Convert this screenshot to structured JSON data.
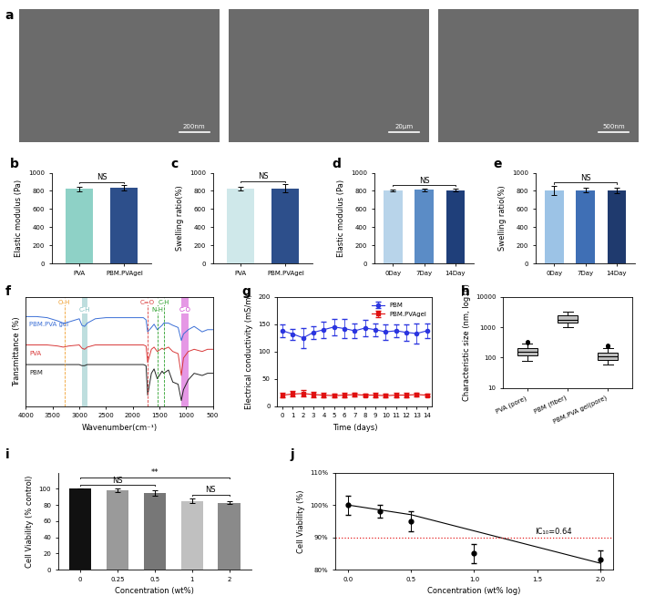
{
  "images": {
    "panel": "a",
    "scale_bars": [
      "200nm",
      "20μm",
      "500nm"
    ]
  },
  "chart_data": [
    {
      "panel": "b",
      "type": "bar",
      "categories": [
        "PVA",
        "PBM.PVAgel"
      ],
      "values": [
        820,
        830
      ],
      "errors": [
        25,
        30
      ],
      "colors": [
        "#8ed1c6",
        "#2d4f8b"
      ],
      "ylabel": "Elastic modulus (Pa)",
      "ylim": [
        0,
        1000
      ],
      "yticks": [
        0,
        200,
        400,
        600,
        800,
        1000
      ],
      "annotations": [
        {
          "text": "NS",
          "between": [
            "PVA",
            "PBM.PVAgel"
          ]
        }
      ]
    },
    {
      "panel": "c",
      "type": "bar",
      "categories": [
        "PVA",
        "PBM.PVAgel"
      ],
      "values": [
        820,
        825
      ],
      "errors": [
        20,
        45
      ],
      "colors": [
        "#cfe8ea",
        "#2d4f8b"
      ],
      "ylabel": "Swelling ratio(%)",
      "ylim": [
        0,
        1000
      ],
      "yticks": [
        0,
        200,
        400,
        600,
        800,
        1000
      ],
      "annotations": [
        {
          "text": "NS",
          "between": [
            "PVA",
            "PBM.PVAgel"
          ]
        }
      ]
    },
    {
      "panel": "d",
      "type": "bar",
      "categories": [
        "0Day",
        "7Day",
        "14Day"
      ],
      "values": [
        805,
        810,
        805
      ],
      "errors": [
        10,
        15,
        15
      ],
      "colors": [
        "#b8d4ea",
        "#5b8cc6",
        "#1f3f7a"
      ],
      "ylabel": "Elastic modulus (Pa)",
      "ylim": [
        0,
        1000
      ],
      "yticks": [
        0,
        200,
        400,
        600,
        800,
        1000
      ],
      "annotations": [
        {
          "text": "NS",
          "between": [
            "0Day",
            "14Day"
          ]
        }
      ]
    },
    {
      "panel": "e",
      "type": "bar",
      "categories": [
        "0Day",
        "7Day",
        "14Day"
      ],
      "values": [
        800,
        805,
        805
      ],
      "errors": [
        50,
        25,
        30
      ],
      "colors": [
        "#9cc3e6",
        "#3f6fb5",
        "#1f3a6e"
      ],
      "ylabel": "Swelling ratio(%)",
      "ylim": [
        0,
        1000
      ],
      "yticks": [
        0,
        200,
        400,
        600,
        800,
        1000
      ],
      "annotations": [
        {
          "text": "NS",
          "between": [
            "0Day",
            "14Day"
          ]
        }
      ]
    },
    {
      "panel": "f",
      "type": "line",
      "xlabel": "Wavenumber(cm⁻¹)",
      "ylabel": "Transmittance (%)",
      "x": [
        4000,
        3800,
        3600,
        3400,
        3300,
        3200,
        3000,
        2950,
        2900,
        2850,
        2700,
        2500,
        2200,
        2000,
        1800,
        1750,
        1720,
        1650,
        1600,
        1540,
        1450,
        1420,
        1330,
        1250,
        1150,
        1090,
        1050,
        960,
        850,
        700,
        600,
        500
      ],
      "series": [
        {
          "name": "PBM.PVA gel",
          "color": "#3b6fd6",
          "values": [
            82,
            82,
            81,
            78,
            76,
            77,
            80,
            74,
            73,
            76,
            80,
            81,
            81,
            81,
            81,
            79,
            68,
            72,
            75,
            70,
            74,
            76,
            76,
            74,
            72,
            60,
            66,
            70,
            73,
            68,
            70,
            70
          ]
        },
        {
          "name": "PVA",
          "color": "#d93a3a",
          "values": [
            56,
            56,
            56,
            55,
            54,
            55,
            56,
            53,
            52,
            54,
            56,
            56,
            56,
            56,
            56,
            55,
            40,
            52,
            54,
            50,
            53,
            52,
            54,
            50,
            48,
            28,
            44,
            50,
            52,
            50,
            52,
            52
          ]
        },
        {
          "name": "PBM",
          "color": "#222222",
          "values": [
            38,
            38,
            38,
            38,
            38,
            38,
            38,
            37,
            37,
            38,
            38,
            38,
            38,
            38,
            38,
            37,
            10,
            30,
            34,
            25,
            32,
            30,
            33,
            22,
            20,
            5,
            15,
            24,
            30,
            28,
            30,
            30
          ]
        }
      ],
      "xlim": [
        4000,
        500
      ],
      "xticks": [
        4000,
        3500,
        3000,
        2500,
        2000,
        1500,
        1000,
        500
      ],
      "ylim": [
        0,
        100
      ],
      "yticks": [],
      "tick_labels": "x",
      "annotations": [
        {
          "text": "O-H",
          "x": [
            3280
          ],
          "color": "#f0a030"
        },
        {
          "text": "C-H",
          "x": [
            2950,
            2840
          ],
          "color": "#7fbfbf"
        },
        {
          "text": "C=O",
          "x": [
            1720
          ],
          "color": "#d93a3a"
        },
        {
          "text": "N-H",
          "x": [
            1540
          ],
          "color": "#2ca02c"
        },
        {
          "text": "C-H",
          "x": [
            1420
          ],
          "color": "#2ca02c"
        },
        {
          "text": "C-O",
          "x": [
            1090,
            960
          ],
          "color": "#cc33cc"
        }
      ]
    },
    {
      "panel": "g",
      "type": "line",
      "xlabel": "Time (days)",
      "ylabel": "Electrical conductivity (mS/m)",
      "x": [
        0,
        1,
        2,
        3,
        4,
        5,
        6,
        7,
        8,
        9,
        10,
        11,
        12,
        13,
        14
      ],
      "series": [
        {
          "name": "PBM",
          "color": "#2b35e0",
          "marker": "o",
          "values": [
            138,
            132,
            125,
            135,
            140,
            145,
            142,
            138,
            143,
            140,
            136,
            138,
            135,
            133,
            138
          ],
          "errors": [
            12,
            10,
            18,
            12,
            15,
            15,
            18,
            14,
            15,
            12,
            14,
            12,
            15,
            18,
            14
          ]
        },
        {
          "name": "PBM.PVAgel",
          "color": "#e01010",
          "marker": "s",
          "values": [
            20,
            22,
            23,
            21,
            20,
            19,
            20,
            21,
            20,
            20,
            19,
            20,
            20,
            21,
            20
          ],
          "errors": [
            4,
            5,
            6,
            5,
            4,
            3,
            4,
            4,
            3,
            4,
            3,
            4,
            4,
            4,
            3
          ]
        }
      ],
      "xlim": [
        -0.5,
        14.5
      ],
      "xticks": [
        0,
        1,
        2,
        3,
        4,
        5,
        6,
        7,
        8,
        9,
        10,
        11,
        12,
        13,
        14
      ],
      "ylim": [
        0,
        200
      ],
      "yticks": [
        0,
        50,
        100,
        150,
        200
      ],
      "legend": "upper right"
    },
    {
      "panel": "h",
      "type": "box",
      "categories": [
        "PVA (pore)",
        "PBM (fiber)",
        "PBM.PVA gel(pore)"
      ],
      "color": "#bfbfbf",
      "boxes": [
        {
          "whislo": 80,
          "q1": 120,
          "med": 150,
          "q3": 200,
          "whishi": 280,
          "fliers": [
            300,
            330
          ]
        },
        {
          "whislo": 1000,
          "q1": 1400,
          "med": 1800,
          "q3": 2400,
          "whishi": 3200,
          "fliers": []
        },
        {
          "whislo": 60,
          "q1": 85,
          "med": 110,
          "q3": 140,
          "whishi": 210,
          "fliers": [
            230,
            260
          ]
        }
      ],
      "ylabel": "Characteristic size (nm, log10)",
      "log": "y",
      "ylim": [
        10,
        10000
      ],
      "yticks": [
        10,
        100,
        1000,
        10000
      ]
    },
    {
      "panel": "i",
      "type": "bar",
      "categories": [
        "0",
        "0.25",
        "0.5",
        "1",
        "2"
      ],
      "values": [
        100,
        98,
        95,
        85,
        83
      ],
      "errors": [
        0,
        2,
        3,
        3,
        2
      ],
      "colors": [
        "#111111",
        "#9a9a9a",
        "#777777",
        "#c0c0c0",
        "#8a8a8a"
      ],
      "xlabel": "Concentration (wt%)",
      "ylabel": "Cell Viability (% control)",
      "ylim": [
        0,
        120
      ],
      "yticks": [
        0,
        20,
        40,
        60,
        80,
        100
      ],
      "annotations": [
        {
          "text": "NS",
          "between": [
            "0",
            "0.5"
          ]
        },
        {
          "text": "**",
          "between": [
            "0",
            "2"
          ]
        },
        {
          "text": "NS",
          "between": [
            "1",
            "2"
          ]
        }
      ]
    },
    {
      "panel": "j",
      "type": "scatter",
      "x": [
        0,
        0.25,
        0.5,
        1,
        2
      ],
      "values": [
        100,
        98,
        95,
        85,
        83
      ],
      "errors": [
        3,
        2,
        3,
        3,
        3
      ],
      "fit": {
        "x": [
          0,
          0.5,
          1,
          1.5,
          2
        ],
        "values": [
          100,
          97,
          92,
          87,
          82
        ]
      },
      "xlabel": "Concentration (wt% log)",
      "ylabel": "Cell Viability (%)",
      "xlim": [
        -0.1,
        2.1
      ],
      "xticks": [
        {
          "value": 0,
          "label": "0.0"
        },
        {
          "value": 0.5,
          "label": "0.5"
        },
        {
          "value": 1,
          "label": "1.0"
        },
        {
          "value": 1.5,
          "label": "1.5"
        },
        {
          "value": 2,
          "label": "2.0"
        }
      ],
      "ylim": [
        80,
        110
      ],
      "yticks": [
        {
          "value": 80,
          "label": "80%"
        },
        {
          "value": 90,
          "label": "90%"
        },
        {
          "value": 100,
          "label": "100%"
        },
        {
          "value": 110,
          "label": "110%"
        }
      ],
      "annotations": [
        {
          "text": "IC₁₀=0.64",
          "y": 90,
          "color": "#e41a1c"
        }
      ]
    }
  ]
}
